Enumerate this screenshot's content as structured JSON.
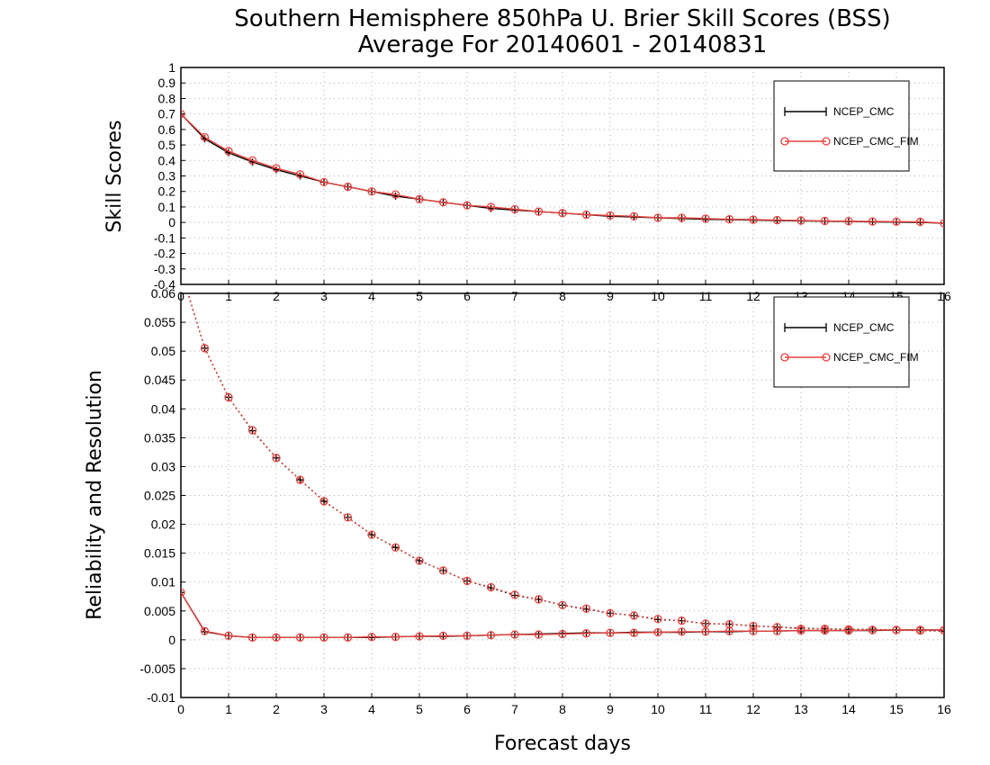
{
  "title": {
    "line1": "Southern Hemisphere 850hPa U. Brier Skill Scores (BSS)",
    "line2": "Average For 20140601 - 20140831"
  },
  "xlabel": "Forecast days",
  "colors": {
    "NCEP_CMC": "#000000",
    "NCEP_CMC_FIM": "#e8413c",
    "grid": "#b0b0b0"
  },
  "chart_data": [
    {
      "type": "line",
      "panel": "top",
      "title": "",
      "ylabel": "Skill Scores",
      "xlim": [
        0,
        16
      ],
      "ylim": [
        -0.4,
        1
      ],
      "xticks": [
        "0",
        "1",
        "2",
        "3",
        "4",
        "5",
        "6",
        "7",
        "8",
        "9",
        "10",
        "11",
        "12",
        "13",
        "14",
        "15",
        "16"
      ],
      "yticks": [
        "-0.4",
        "-0.3",
        "-0.2",
        "-0.1",
        "0",
        "0.1",
        "0.2",
        "0.3",
        "0.4",
        "0.5",
        "0.6",
        "0.7",
        "0.8",
        "0.9",
        "1"
      ],
      "ytick_values": [
        -0.4,
        -0.3,
        -0.2,
        -0.1,
        0,
        0.1,
        0.2,
        0.3,
        0.4,
        0.5,
        0.6,
        0.7,
        0.8,
        0.9,
        1
      ],
      "grid": true,
      "legend": {
        "placement": "top-right",
        "entries": [
          "NCEP_CMC",
          "NCEP_CMC_FIM"
        ]
      },
      "x": [
        0,
        0.5,
        1,
        1.5,
        2,
        2.5,
        3,
        3.5,
        4,
        4.5,
        5,
        5.5,
        6,
        6.5,
        7,
        7.5,
        8,
        8.5,
        9,
        9.5,
        10,
        10.5,
        11,
        11.5,
        12,
        12.5,
        13,
        13.5,
        14,
        14.5,
        15,
        15.5,
        16
      ],
      "series": [
        {
          "name": "NCEP_CMC",
          "style": "solid",
          "marker": "plus",
          "values": [
            0.7,
            0.54,
            0.45,
            0.39,
            0.34,
            0.3,
            0.26,
            0.23,
            0.2,
            0.17,
            0.15,
            0.13,
            0.11,
            0.09,
            0.08,
            0.07,
            0.06,
            0.05,
            0.04,
            0.035,
            0.03,
            0.025,
            0.02,
            0.018,
            0.015,
            0.012,
            0.01,
            0.008,
            0.006,
            0.004,
            0.002,
            0.0,
            -0.005
          ]
        },
        {
          "name": "NCEP_CMC_FIM",
          "style": "solid",
          "marker": "circle",
          "values": [
            0.7,
            0.55,
            0.46,
            0.4,
            0.35,
            0.31,
            0.26,
            0.23,
            0.2,
            0.18,
            0.15,
            0.13,
            0.11,
            0.1,
            0.085,
            0.07,
            0.06,
            0.05,
            0.045,
            0.04,
            0.03,
            0.03,
            0.025,
            0.02,
            0.018,
            0.015,
            0.012,
            0.01,
            0.008,
            0.006,
            0.005,
            0.004,
            -0.005
          ]
        }
      ]
    },
    {
      "type": "line",
      "panel": "bottom",
      "title": "",
      "ylabel": "Reliability and Resolution",
      "xlim": [
        0,
        16
      ],
      "ylim": [
        -0.01,
        0.06
      ],
      "xticks": [
        "0",
        "1",
        "2",
        "3",
        "4",
        "5",
        "6",
        "7",
        "8",
        "9",
        "10",
        "11",
        "12",
        "13",
        "14",
        "15",
        "16"
      ],
      "yticks": [
        "-0.01",
        "-0.005",
        "0",
        "0.005",
        "0.01",
        "0.015",
        "0.02",
        "0.025",
        "0.03",
        "0.035",
        "0.04",
        "0.045",
        "0.05",
        "0.055",
        "0.06"
      ],
      "ytick_values": [
        -0.01,
        -0.005,
        0,
        0.005,
        0.01,
        0.015,
        0.02,
        0.025,
        0.03,
        0.035,
        0.04,
        0.045,
        0.05,
        0.055,
        0.06
      ],
      "grid": true,
      "legend": {
        "placement": "top-right",
        "entries": [
          "NCEP_CMC",
          "NCEP_CMC_FIM"
        ]
      },
      "x": [
        0,
        0.5,
        1,
        1.5,
        2,
        2.5,
        3,
        3.5,
        4,
        4.5,
        5,
        5.5,
        6,
        6.5,
        7,
        7.5,
        8,
        8.5,
        9,
        9.5,
        10,
        10.5,
        11,
        11.5,
        12,
        12.5,
        13,
        13.5,
        14,
        14.5,
        15,
        15.5,
        16
      ],
      "series": [
        {
          "name": "NCEP_CMC",
          "style": "dotted",
          "marker": "plus",
          "values": [
            0.064,
            0.0505,
            0.042,
            0.0362,
            0.0315,
            0.0277,
            0.024,
            0.0212,
            0.0182,
            0.016,
            0.0137,
            0.012,
            0.0102,
            0.009,
            0.0077,
            0.007,
            0.006,
            0.0053,
            0.0046,
            0.0042,
            0.0035,
            0.0033,
            0.0028,
            0.0027,
            0.0024,
            0.0022,
            0.002,
            0.0019,
            0.0018,
            0.0018,
            0.0017,
            0.0016,
            0.0015
          ]
        },
        {
          "name": "NCEP_CMC_FIM",
          "style": "dotted",
          "marker": "circle",
          "values": [
            0.064,
            0.0505,
            0.042,
            0.0363,
            0.0315,
            0.0277,
            0.024,
            0.0212,
            0.0182,
            0.016,
            0.0137,
            0.012,
            0.0102,
            0.0091,
            0.0078,
            0.007,
            0.006,
            0.0054,
            0.0046,
            0.0042,
            0.0036,
            0.0033,
            0.0028,
            0.0027,
            0.0024,
            0.0022,
            0.0019,
            0.0019,
            0.0018,
            0.0017,
            0.0017,
            0.0016,
            0.0016
          ]
        },
        {
          "name": "NCEP_CMC",
          "style": "solid",
          "marker": "plus",
          "values": [
            0.0082,
            0.0014,
            0.0007,
            0.0004,
            0.0004,
            0.0004,
            0.0004,
            0.0004,
            0.0004,
            0.0005,
            0.0006,
            0.0006,
            0.0007,
            0.0008,
            0.0009,
            0.001,
            0.0011,
            0.0012,
            0.0012,
            0.0013,
            0.0013,
            0.0013,
            0.0014,
            0.0014,
            0.0015,
            0.0015,
            0.0016,
            0.0016,
            0.0016,
            0.0016,
            0.0017,
            0.0017,
            0.0017
          ]
        },
        {
          "name": "NCEP_CMC_FIM",
          "style": "solid",
          "marker": "circle",
          "values": [
            0.0082,
            0.0015,
            0.0007,
            0.0004,
            0.0004,
            0.0004,
            0.0004,
            0.0004,
            0.0005,
            0.0005,
            0.0006,
            0.0007,
            0.0007,
            0.0008,
            0.0009,
            0.0009,
            0.001,
            0.0011,
            0.0012,
            0.0012,
            0.0013,
            0.0014,
            0.0014,
            0.0015,
            0.0015,
            0.0015,
            0.0016,
            0.0016,
            0.0016,
            0.0017,
            0.0017,
            0.0017,
            0.0017
          ]
        }
      ]
    }
  ]
}
